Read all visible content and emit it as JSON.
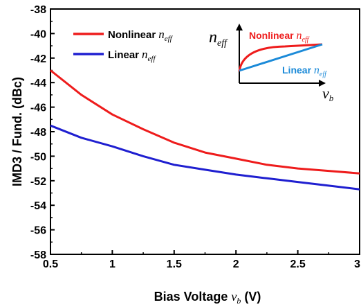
{
  "chart_data": {
    "type": "line",
    "xlabel_main": "Bias Voltage ",
    "xlabel_var": "v",
    "xlabel_sub": "b",
    "xlabel_unit": " (V)",
    "ylabel": "IMD3 / Fund. (dBc)",
    "xlim": [
      0.5,
      3.0
    ],
    "ylim": [
      -58,
      -38
    ],
    "xticks": [
      0.5,
      1.0,
      1.5,
      2.0,
      2.5,
      3.0
    ],
    "xtick_labels": [
      "0.5",
      "1",
      "1.5",
      "2",
      "2.5",
      "3"
    ],
    "yticks": [
      -58,
      -56,
      -54,
      -52,
      -50,
      -48,
      -46,
      -44,
      -42,
      -40,
      -38
    ],
    "ytick_labels": [
      "-58",
      "-56",
      "-54",
      "-52",
      "-50",
      "-48",
      "-46",
      "-44",
      "-42",
      "-40",
      "-38"
    ],
    "legend_position": "top-left",
    "series": [
      {
        "name": "Nonlinear",
        "name_var": "n",
        "name_sub": "eff",
        "color": "#ee1c1c",
        "x": [
          0.5,
          0.75,
          1.0,
          1.25,
          1.5,
          1.75,
          2.0,
          2.25,
          2.5,
          2.75,
          3.0
        ],
        "y": [
          -43.0,
          -45.0,
          -46.6,
          -47.8,
          -48.9,
          -49.7,
          -50.2,
          -50.7,
          -51.0,
          -51.2,
          -51.4
        ]
      },
      {
        "name": "Linear",
        "name_var": "n",
        "name_sub": "eff",
        "color": "#1f1fd0",
        "x": [
          0.5,
          0.75,
          1.0,
          1.25,
          1.5,
          1.75,
          2.0,
          2.25,
          2.5,
          2.75,
          3.0
        ],
        "y": [
          -47.5,
          -48.5,
          -49.2,
          -50.0,
          -50.7,
          -51.1,
          -51.5,
          -51.8,
          -52.1,
          -52.4,
          -52.7
        ]
      }
    ],
    "inset": {
      "ylabel_var": "n",
      "ylabel_sub": "eff",
      "xlabel_var": "v",
      "xlabel_sub": "b",
      "nonlinear_label": "Nonlinear ",
      "nonlinear_color": "#ee1c1c",
      "linear_label": "Linear ",
      "linear_color": "#1b8ad8",
      "label_var": "n",
      "label_sub": "eff"
    }
  }
}
